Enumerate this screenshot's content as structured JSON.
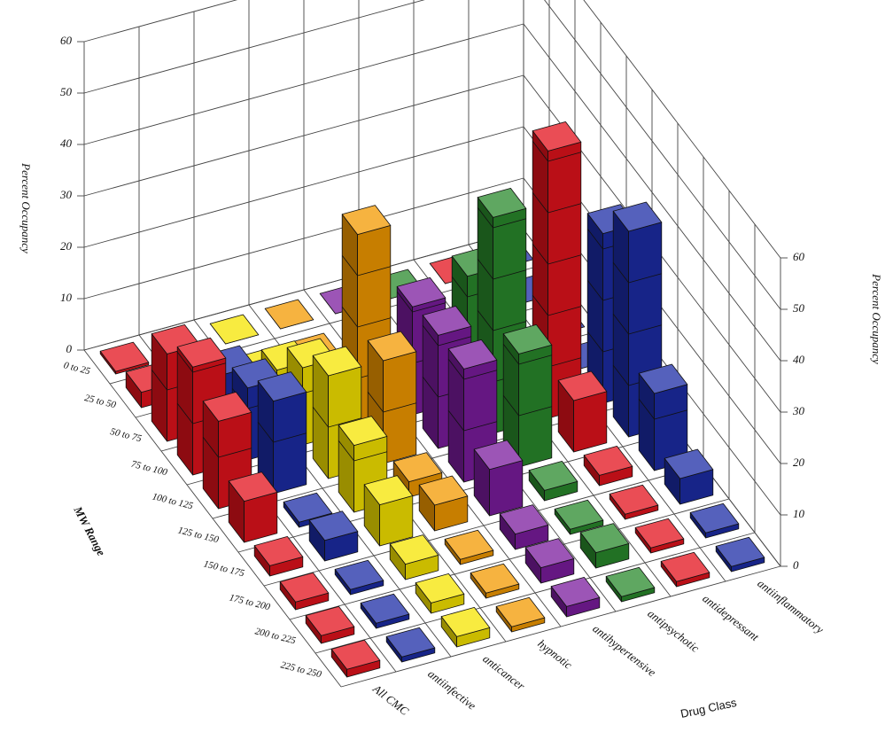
{
  "chart_data": {
    "type": "bar3d",
    "x_label": "MW Range",
    "y_label": "Drug Class",
    "z_label": "Percent Occupancy",
    "categories": [
      "0 to 25",
      "25 to 50",
      "50 to 75",
      "75 to 100",
      "100 to 125",
      "125 to 150",
      "150 to 175",
      "175 to 200",
      "200 to 225",
      "225 to 250"
    ],
    "series": [
      {
        "name": "All CMC",
        "color": "#e3121c",
        "values": [
          0.5,
          3,
          17,
          21,
          17,
          8,
          2,
          1.5,
          1.5,
          1.5
        ]
      },
      {
        "name": "antiinfective",
        "color": "#1c2ca6",
        "values": [
          0,
          0,
          10,
          14,
          18,
          1,
          4,
          1,
          1,
          1
        ]
      },
      {
        "name": "anticancer",
        "color": "#f6e400",
        "values": [
          0,
          0,
          8,
          15,
          20,
          13,
          8,
          3,
          2,
          2
        ]
      },
      {
        "name": "hypnotic",
        "color": "#f39a00",
        "values": [
          0,
          0,
          0,
          38,
          20,
          3,
          5,
          1,
          1,
          1
        ]
      },
      {
        "name": "antihypertensive",
        "color": "#7b1c9e",
        "values": [
          0,
          0,
          0,
          21,
          22,
          22,
          9,
          3,
          3,
          2
        ]
      },
      {
        "name": "antipsychotic",
        "color": "#2a8a2c",
        "values": [
          0,
          0,
          0,
          24,
          42,
          22,
          2,
          1,
          3,
          1
        ]
      },
      {
        "name": "antidepressant",
        "color": "#e3121c",
        "values": [
          0,
          0,
          0,
          0,
          52,
          10,
          2,
          1,
          1,
          1
        ]
      },
      {
        "name": "antiinflammatory",
        "color": "#1c2ca6",
        "values": [
          0,
          0,
          0,
          0,
          33,
          40,
          15,
          5,
          1,
          1
        ]
      }
    ],
    "zlim": [
      0,
      60
    ],
    "zticks": [
      0,
      10,
      20,
      30,
      40,
      50,
      60
    ],
    "grid": true
  }
}
